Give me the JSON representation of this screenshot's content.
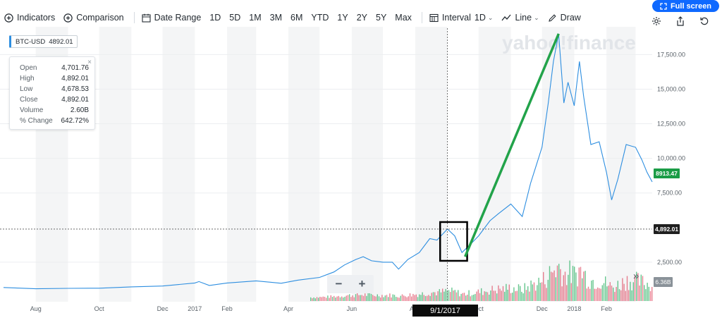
{
  "toolbar": {
    "indicators": "Indicators",
    "comparison": "Comparison",
    "date_range": "Date Range",
    "ranges": [
      "1D",
      "5D",
      "1M",
      "3M",
      "6M",
      "YTD",
      "1Y",
      "2Y",
      "5Y",
      "Max"
    ],
    "interval_label": "Interval",
    "interval_value": "1D",
    "chart_type": "Line",
    "draw": "Draw",
    "fullscreen": "Full screen"
  },
  "symbol": {
    "ticker": "BTC-USD",
    "price": "4892.01",
    "color": "#2d8ee0"
  },
  "ohlc": [
    {
      "label": "Open",
      "value": "4,701.76"
    },
    {
      "label": "High",
      "value": "4,892.01"
    },
    {
      "label": "Low",
      "value": "4,678.53"
    },
    {
      "label": "Close",
      "value": "4,892.01"
    },
    {
      "label": "Volume",
      "value": "2.60B"
    },
    {
      "label": "% Change",
      "value": "642.72%"
    }
  ],
  "ohlc_close": "×",
  "watermark": "yahoo!finance",
  "zoom": {
    "minus": "−",
    "plus": "+"
  },
  "expand": "»",
  "hover_date": "9/1/2017",
  "colors": {
    "line": "#2d8ee0",
    "annotation": "#22a34a",
    "current_price_tag": "#1a9c46",
    "crosshair_tag": "#1f1f1f",
    "volume_up": "#34b36a",
    "volume_down": "#e0566c",
    "volume_tag": "#8a9299"
  },
  "chart_data": {
    "type": "line",
    "title": "",
    "y_tick_labels": [
      "17,500.00",
      "15,000.00",
      "12,500.00",
      "10,000.00",
      "7,500.00",
      "2,500.00"
    ],
    "y_ticks": [
      17500,
      15000,
      12500,
      10000,
      7500,
      2500
    ],
    "x_tick_labels": [
      "Aug",
      "Oct",
      "Dec",
      "2017",
      "Feb",
      "Apr",
      "Jun",
      "Aug",
      "Oct",
      "Dec",
      "2018",
      "Feb"
    ],
    "x_ticks": [
      "2016-08-01",
      "2016-10-01",
      "2016-12-01",
      "2017-01-01",
      "2017-02-01",
      "2017-04-01",
      "2017-06-01",
      "2017-08-01",
      "2017-10-01",
      "2017-12-01",
      "2018-01-01",
      "2018-02-01"
    ],
    "x_range": [
      "2016-07-01",
      "2018-03-17"
    ],
    "ylim": [
      0,
      19200
    ],
    "current_price_tag": "8913.47",
    "current_price": 8913.47,
    "crosshair_price_tag": "4,892.01",
    "crosshair_price": 4892.01,
    "crosshair_date": "2017-09-01",
    "volume_tag": "6.36B",
    "series": [
      {
        "name": "BTC-USD",
        "x": [
          "2016-07-01",
          "2016-08-01",
          "2016-09-01",
          "2016-10-01",
          "2016-11-01",
          "2016-12-01",
          "2017-01-01",
          "2017-01-05",
          "2017-01-15",
          "2017-02-01",
          "2017-03-01",
          "2017-03-25",
          "2017-04-10",
          "2017-05-01",
          "2017-05-15",
          "2017-05-25",
          "2017-06-05",
          "2017-06-12",
          "2017-06-20",
          "2017-07-01",
          "2017-07-10",
          "2017-07-16",
          "2017-07-25",
          "2017-08-05",
          "2017-08-15",
          "2017-08-22",
          "2017-09-01",
          "2017-09-08",
          "2017-09-15",
          "2017-09-22",
          "2017-10-01",
          "2017-10-12",
          "2017-10-20",
          "2017-11-01",
          "2017-11-12",
          "2017-11-20",
          "2017-12-01",
          "2017-12-07",
          "2017-12-12",
          "2017-12-17",
          "2017-12-22",
          "2017-12-26",
          "2018-01-01",
          "2018-01-06",
          "2018-01-10",
          "2018-01-17",
          "2018-01-25",
          "2018-02-01",
          "2018-02-06",
          "2018-02-12",
          "2018-02-20",
          "2018-03-01",
          "2018-03-07",
          "2018-03-12",
          "2018-03-17"
        ],
        "y": [
          670,
          580,
          610,
          620,
          720,
          780,
          1000,
          1100,
          820,
          1000,
          1150,
          980,
          1200,
          1400,
          1800,
          2300,
          2700,
          2900,
          2600,
          2500,
          2500,
          2000,
          2700,
          3200,
          4200,
          4100,
          4892,
          4400,
          3200,
          3700,
          4400,
          5500,
          6000,
          6700,
          5800,
          8200,
          10800,
          14000,
          17000,
          19000,
          14000,
          15500,
          13800,
          17000,
          14500,
          11000,
          11200,
          9000,
          7000,
          8500,
          11000,
          10800,
          9900,
          9000,
          8300
        ]
      }
    ]
  }
}
